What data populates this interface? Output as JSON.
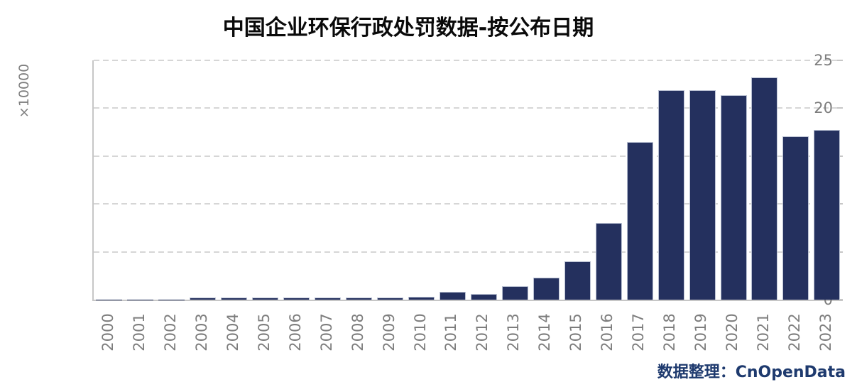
{
  "chart_data": {
    "type": "bar",
    "title": "中国企业环保行政处罚数据-按公布日期",
    "ylabel": "×10000",
    "xlabel": "",
    "categories": [
      "2000",
      "2001",
      "2002",
      "2003",
      "2004",
      "2005",
      "2006",
      "2007",
      "2008",
      "2009",
      "2010",
      "2011",
      "2012",
      "2013",
      "2014",
      "2015",
      "2016",
      "2017",
      "2018",
      "2019",
      "2020",
      "2021",
      "2022",
      "2023"
    ],
    "values": [
      0.02,
      0.02,
      0.02,
      0.2,
      0.2,
      0.2,
      0.2,
      0.2,
      0.2,
      0.2,
      0.3,
      0.8,
      0.6,
      1.4,
      2.3,
      4.0,
      8.0,
      16.5,
      21.9,
      21.9,
      21.4,
      23.2,
      17.1,
      17.7
    ],
    "ylim": [
      0,
      25
    ],
    "yticks": [
      0,
      5,
      10,
      15,
      20,
      25
    ],
    "grid": "horizontal-dashed",
    "legend": "none",
    "bar_color": "#24305e",
    "bar_edge_color": "#b9c0d2",
    "grid_color": "#d6d6d6",
    "axis_color": "#c6c6c6",
    "tick_label_color": "#7d7d7d",
    "title_color": "#0a0a0a"
  },
  "footer": {
    "credit": "数据整理：CnOpenData",
    "color": "#1e3a6e"
  }
}
